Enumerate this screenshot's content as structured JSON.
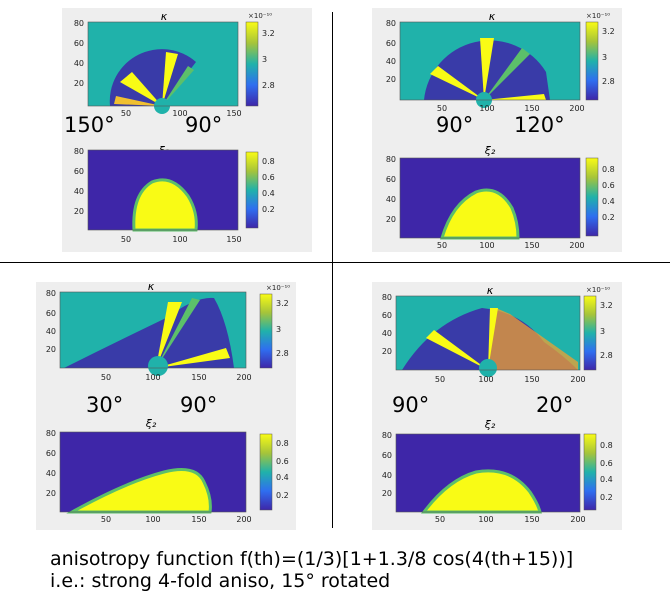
{
  "colors": {
    "panel_bg": "#eeeeee",
    "teal": "#20b2aa",
    "deep_blue": "#3e26a8",
    "yellow": "#f9fb15",
    "divider": "#000000"
  },
  "panels": [
    {
      "id": "top-left",
      "kappa": {
        "title": "κ",
        "yticks": [
          "80",
          "60",
          "40",
          "20"
        ],
        "xticks": [
          "50",
          "100",
          "150"
        ],
        "cb_exp": "×10⁻¹⁰",
        "cb_ticks": [
          "3.2",
          "3",
          "2.8"
        ]
      },
      "xi": {
        "title": "ξ₂",
        "yticks": [
          "80",
          "60",
          "40",
          "20"
        ],
        "xticks": [
          "50",
          "100",
          "150"
        ],
        "cb_ticks": [
          "0.8",
          "0.6",
          "0.4",
          "0.2"
        ]
      },
      "angles": [
        "150°",
        "90°"
      ]
    },
    {
      "id": "top-right",
      "kappa": {
        "title": "κ",
        "yticks": [
          "80",
          "60",
          "40",
          "20"
        ],
        "xticks": [
          "50",
          "100",
          "150",
          "200"
        ],
        "cb_exp": "×10⁻¹⁰",
        "cb_ticks": [
          "3.2",
          "3",
          "2.8"
        ]
      },
      "xi": {
        "title": "ξ₂",
        "yticks": [
          "80",
          "60",
          "40",
          "20"
        ],
        "xticks": [
          "50",
          "100",
          "150",
          "200"
        ],
        "cb_ticks": [
          "0.8",
          "0.6",
          "0.4",
          "0.2"
        ]
      },
      "angles": [
        "90°",
        "120°"
      ]
    },
    {
      "id": "bottom-left",
      "kappa": {
        "title": "κ",
        "yticks": [
          "80",
          "60",
          "40",
          "20"
        ],
        "xticks": [
          "50",
          "100",
          "150",
          "200"
        ],
        "cb_exp": "×10⁻¹⁰",
        "cb_ticks": [
          "3.2",
          "3",
          "2.8"
        ]
      },
      "xi": {
        "title": "ξ₂",
        "yticks": [
          "80",
          "60",
          "40",
          "20"
        ],
        "xticks": [
          "50",
          "100",
          "150",
          "200"
        ],
        "cb_ticks": [
          "0.8",
          "0.6",
          "0.4",
          "0.2"
        ]
      },
      "angles": [
        "30°",
        "90°"
      ]
    },
    {
      "id": "bottom-right",
      "kappa": {
        "title": "κ",
        "yticks": [
          "80",
          "60",
          "40",
          "20"
        ],
        "xticks": [
          "50",
          "100",
          "150",
          "200"
        ],
        "cb_exp": "×10⁻¹⁰",
        "cb_ticks": [
          "3.2",
          "3",
          "2.8"
        ]
      },
      "xi": {
        "title": "ξ₂",
        "yticks": [
          "80",
          "60",
          "40",
          "20"
        ],
        "xticks": [
          "50",
          "100",
          "150",
          "200"
        ],
        "cb_ticks": [
          "0.8",
          "0.6",
          "0.4",
          "0.2"
        ]
      },
      "angles": [
        "90°",
        "20°"
      ]
    }
  ],
  "caption": {
    "line1": "anisotropy function f(th)=(1/3)[1+1.3/8 cos(4(th+15))]",
    "line2": "i.e.: strong 4-fold aniso, 15° rotated"
  }
}
